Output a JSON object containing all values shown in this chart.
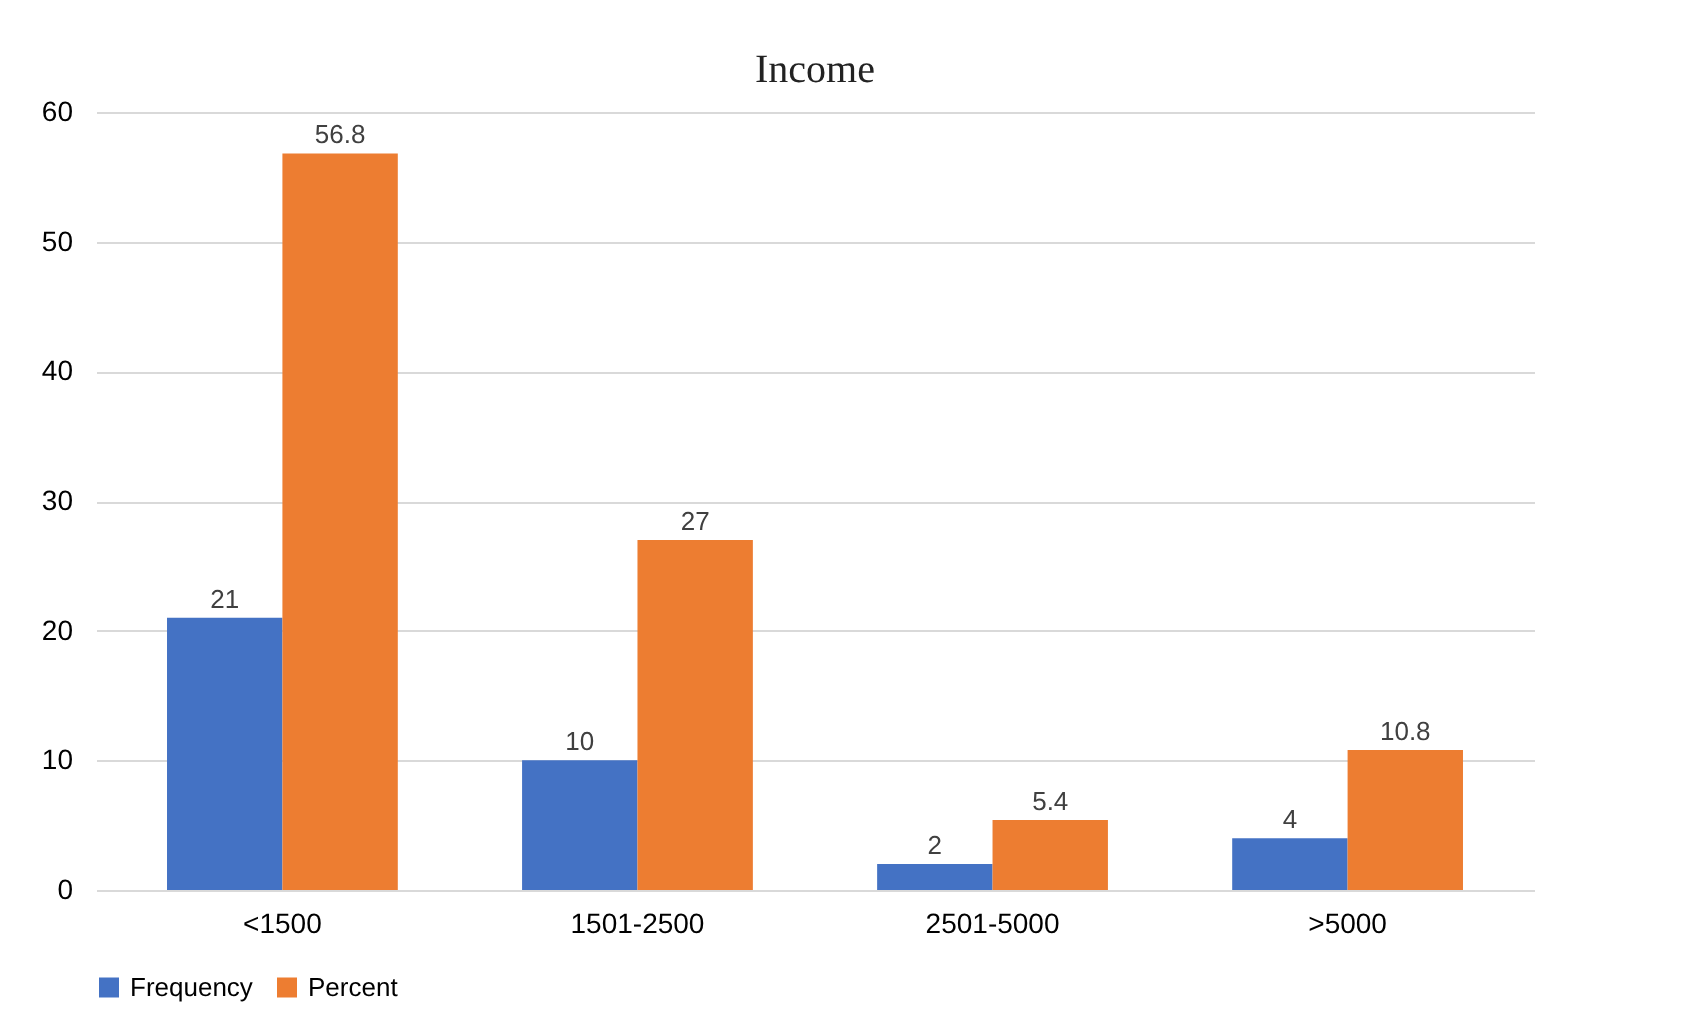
{
  "chart_data": {
    "type": "bar",
    "title": "Income",
    "categories": [
      "<1500",
      "1501-2500",
      "2501-5000",
      ">5000"
    ],
    "series": [
      {
        "name": "Frequency",
        "color": "#4472c4",
        "values": [
          21,
          10,
          2,
          4
        ]
      },
      {
        "name": "Percent",
        "color": "#ed7d31",
        "values": [
          56.8,
          27,
          5.4,
          10.8
        ]
      }
    ],
    "ylim": [
      0,
      60
    ],
    "yticks": [
      0,
      10,
      20,
      30,
      40,
      50,
      60
    ],
    "grid": "y",
    "legend": "bottom",
    "data_labels": true
  }
}
